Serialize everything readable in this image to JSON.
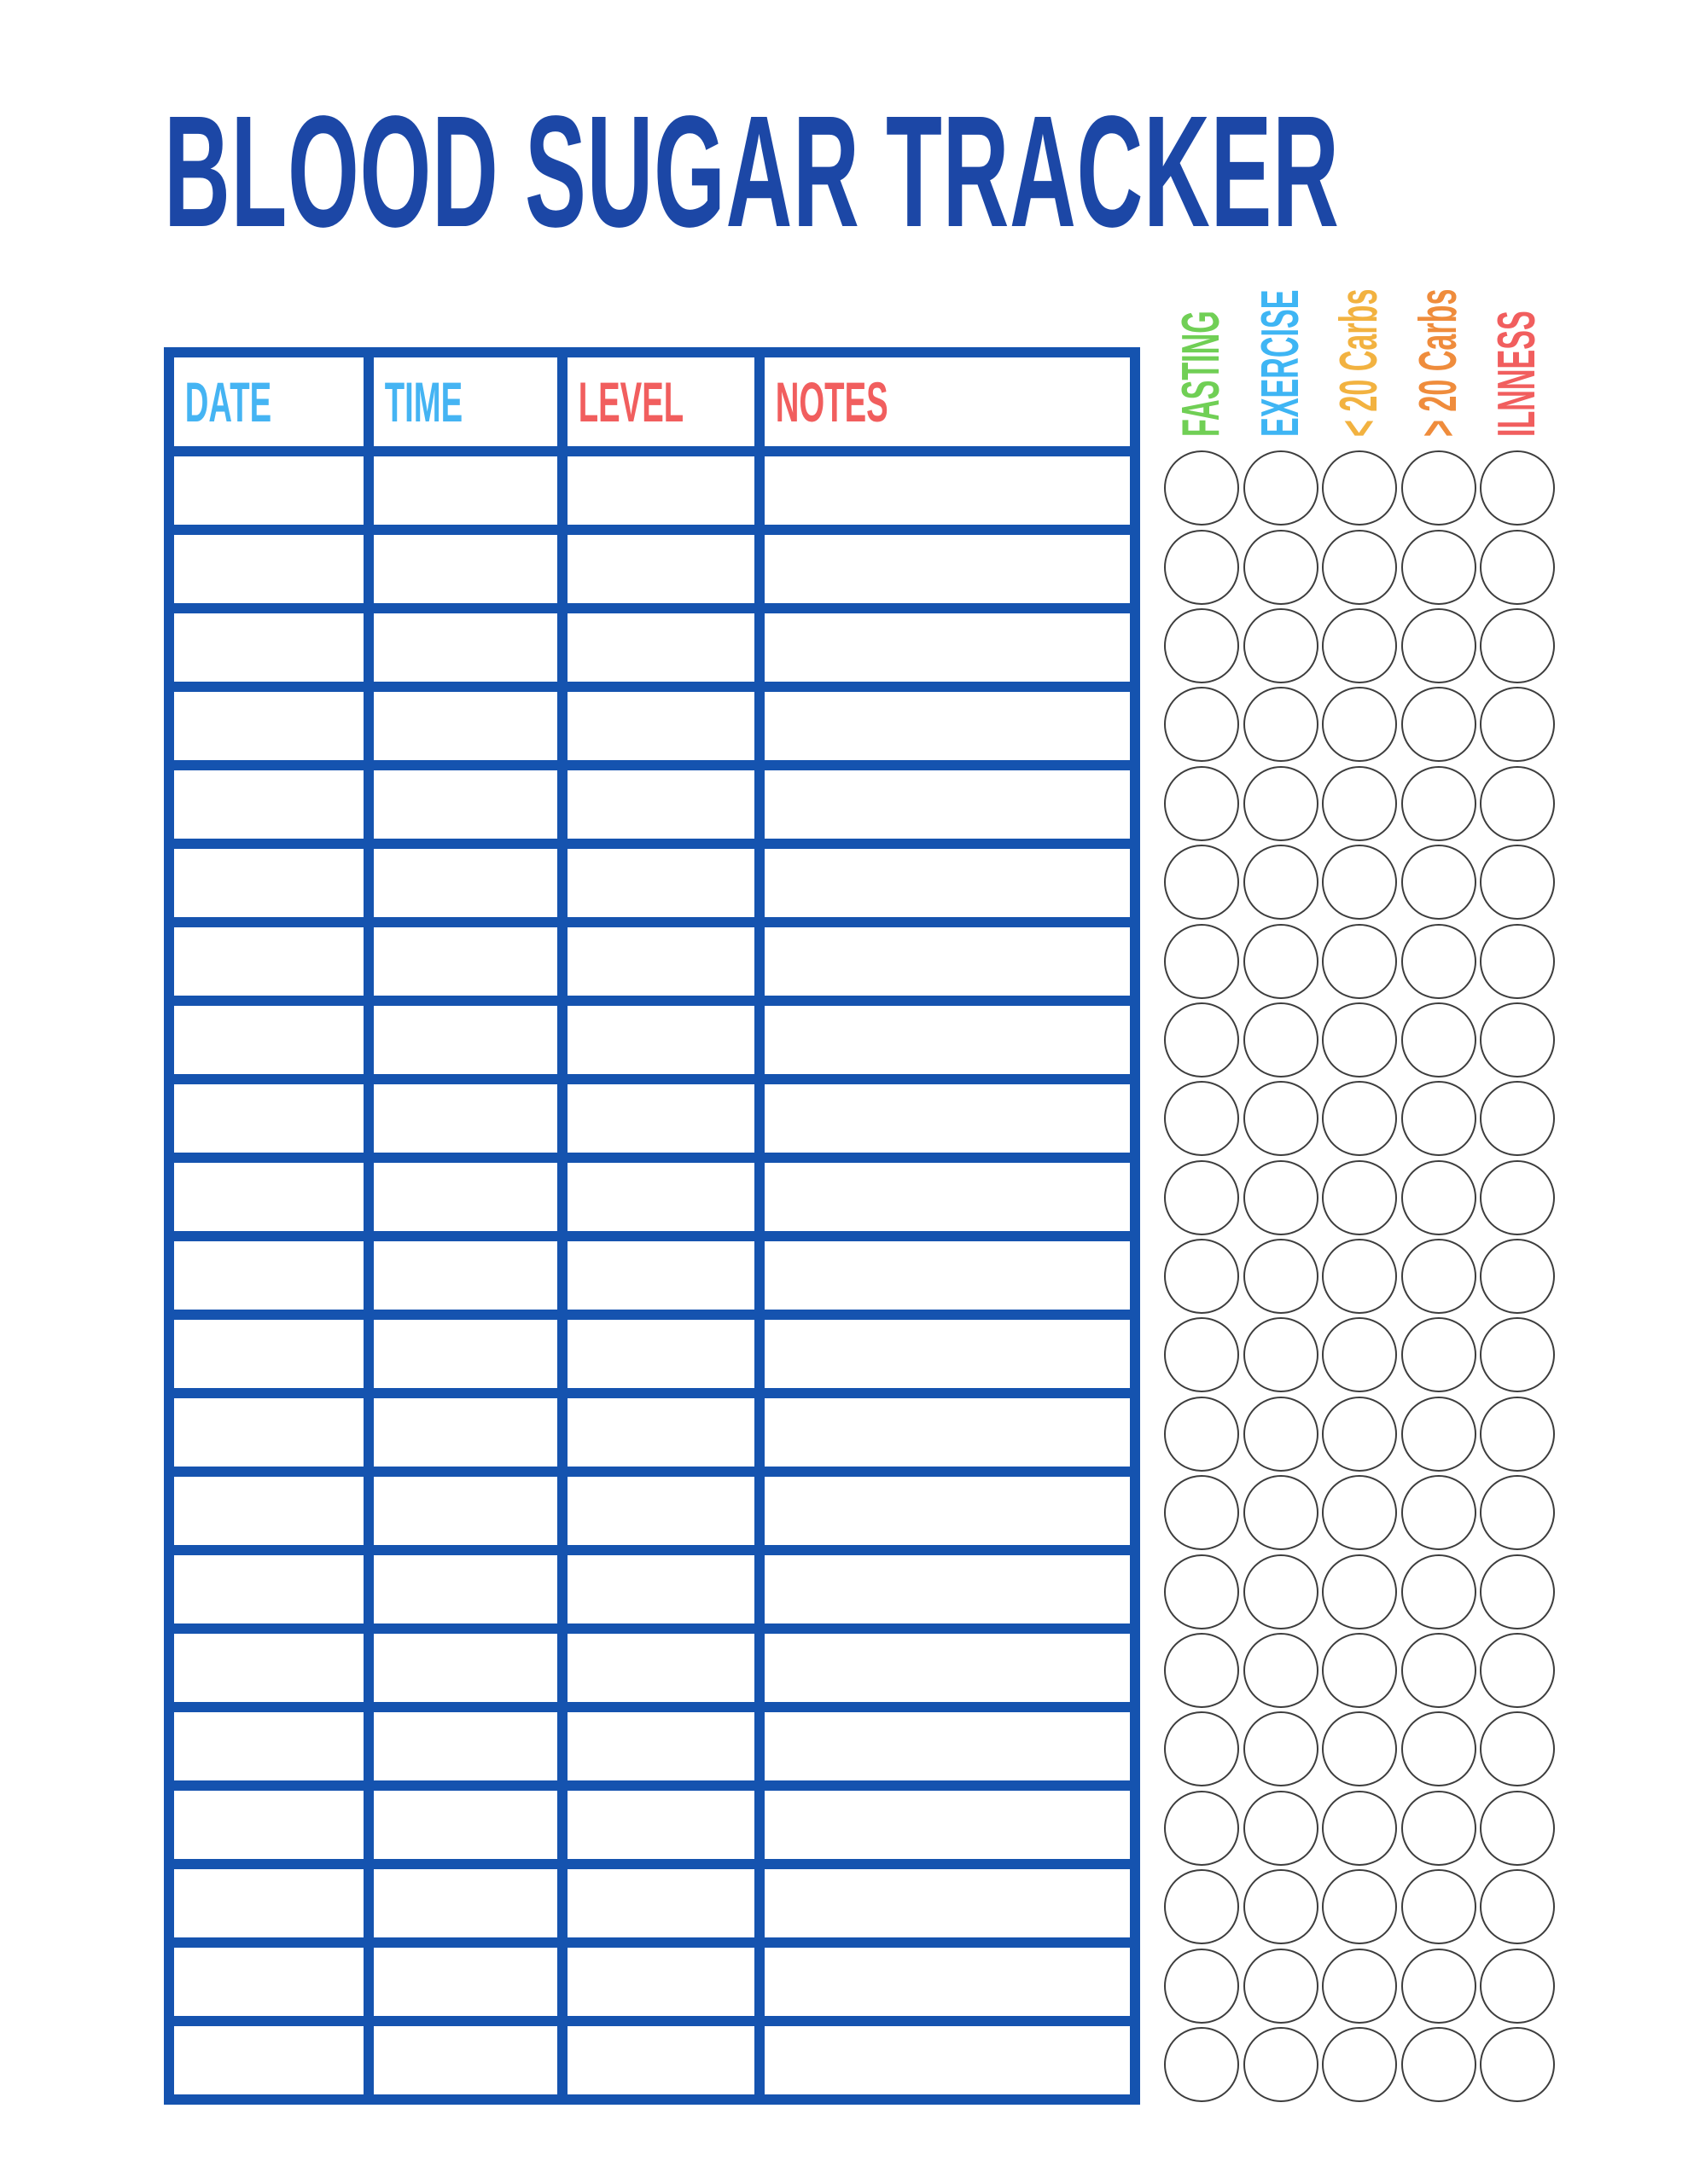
{
  "title": "BLOOD SUGAR TRACKER",
  "colors": {
    "title_blue": "#1c47a6",
    "table_border_blue": "#1553af",
    "circle_outline": "#3d3d3d"
  },
  "table": {
    "columns": [
      {
        "label": "DATE",
        "color": "#45b4f3"
      },
      {
        "label": "TIME",
        "color": "#45b4f3"
      },
      {
        "label": "LEVEL",
        "color": "#f15e5e"
      },
      {
        "label": "NOTES",
        "color": "#f15e5e"
      }
    ],
    "data_row_count": 21,
    "cell_value_empty": ""
  },
  "tracker": {
    "columns": [
      {
        "label": "FASTING",
        "color": "#70cf55"
      },
      {
        "label": "EXERCISE",
        "color": "#3eb5f4"
      },
      {
        "label": "< 20 Carbs",
        "color": "#f2b240"
      },
      {
        "label": "> 20 Carbs",
        "color": "#ef8c3c"
      },
      {
        "label": "ILNNESS",
        "color": "#f15e5e"
      }
    ],
    "column_count": 5,
    "row_count": 21
  }
}
